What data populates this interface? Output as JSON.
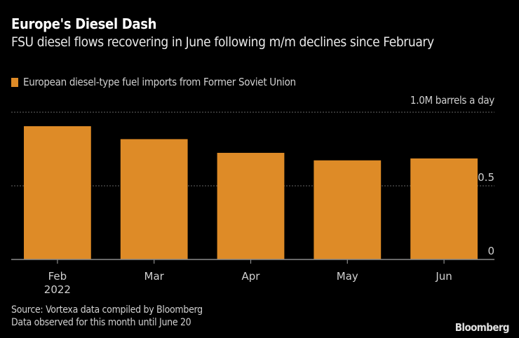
{
  "chart_data": {
    "type": "bar",
    "title": "Europe's Diesel Dash",
    "subtitle": "FSU diesel flows recovering in June following m/m declines since February",
    "categories": [
      "Feb",
      "Mar",
      "Apr",
      "May",
      "Jun"
    ],
    "category_sublabels": [
      "2022",
      "",
      "",
      "",
      ""
    ],
    "series": [
      {
        "name": "European diesel-type fuel imports from Former Soviet Union",
        "color": "#de8b27",
        "values": [
          0.905,
          0.817,
          0.724,
          0.673,
          0.686
        ]
      }
    ],
    "ylabel": "1.0M barrels a day",
    "ylim": [
      0,
      1.0
    ],
    "yticks": [
      {
        "value": 0,
        "label": "0"
      },
      {
        "value": 0.5,
        "label": "0.5"
      },
      {
        "value": 1.0,
        "label": "1.0M barrels a day"
      }
    ],
    "grid": true,
    "legend_position": "top-left"
  },
  "footer": {
    "source": "Source: Vortexa data compiled by Bloomberg",
    "note": "Data observed for this month until June 20",
    "brand": "Bloomberg"
  },
  "colors": {
    "background": "#000000",
    "bar": "#de8b27",
    "grid": "#666666",
    "axis": "#8a8a8a"
  }
}
